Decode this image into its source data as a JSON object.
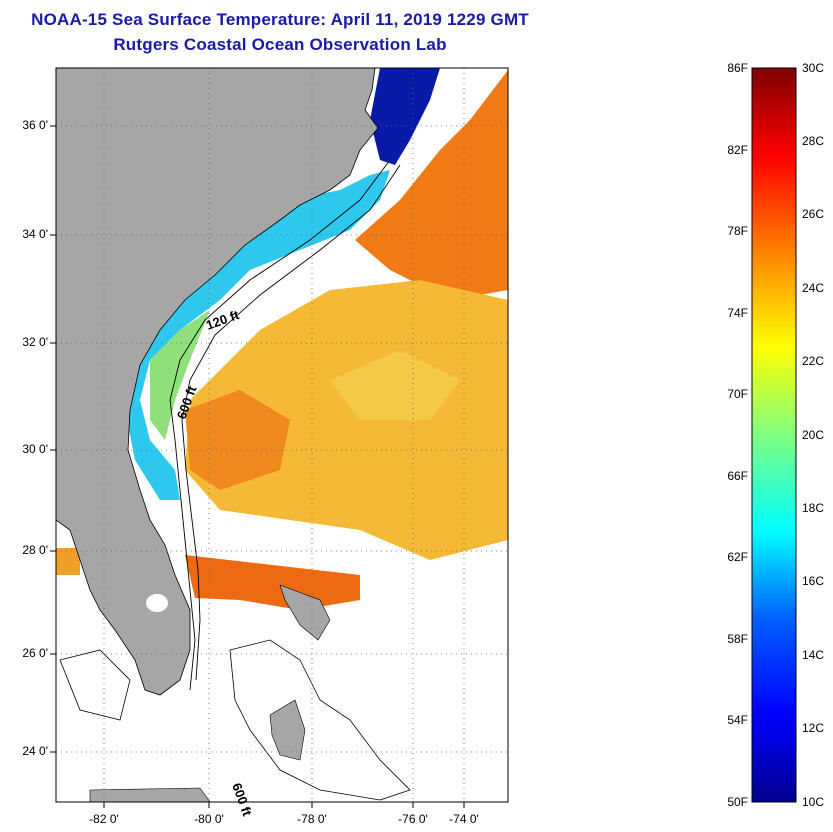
{
  "header": {
    "title": "NOAA-15 Sea Surface Temperature:  April 11, 2019 1229 GMT",
    "subtitle": "Rutgers Coastal Ocean Observation Lab"
  },
  "map": {
    "lat_labels": [
      "36 0'",
      "34 0'",
      "32 0'",
      "30 0'",
      "28 0'",
      "26 0'",
      "24 0'"
    ],
    "lon_labels": [
      "-82 0'",
      "-80 0'",
      "-78 0'",
      "-76 0'",
      "-74 0'"
    ],
    "contour_labels": [
      "120 ft",
      "600 ft",
      "600 ft"
    ],
    "colors": {
      "land": "#a6a6a6",
      "background": "#ffffff",
      "grid": "#666666"
    }
  },
  "colorbar": {
    "fahrenheit_labels": [
      "86F",
      "82F",
      "78F",
      "74F",
      "70F",
      "66F",
      "62F",
      "58F",
      "54F",
      "50F"
    ],
    "celsius_labels": [
      "30C",
      "28C",
      "26C",
      "24C",
      "22C",
      "20C",
      "18C",
      "16C",
      "14C",
      "12C",
      "10C"
    ],
    "range_celsius": [
      10,
      30
    ],
    "colors": [
      "#00008f",
      "#0000ff",
      "#007fff",
      "#00ffff",
      "#7fff7f",
      "#ffff00",
      "#ff7f00",
      "#ff0000",
      "#7f0000"
    ]
  }
}
